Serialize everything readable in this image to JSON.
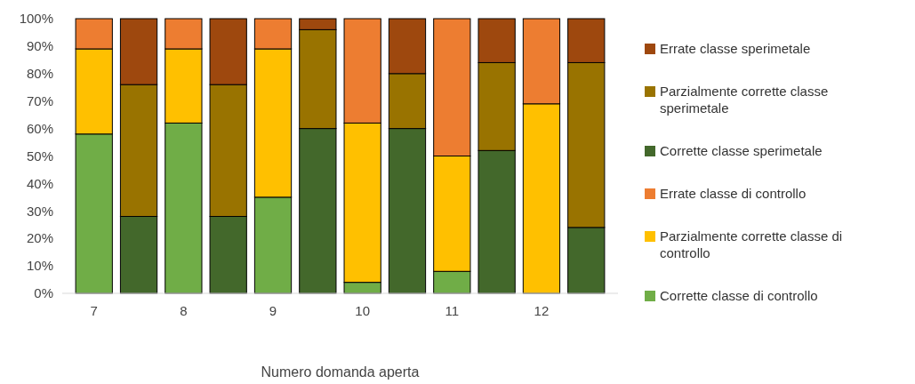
{
  "chart_data": {
    "type": "bar",
    "stacked": true,
    "xlabel": "Numero domanda aperta",
    "categories": [
      "7",
      null,
      "8",
      null,
      "9",
      null,
      "10",
      null,
      "11",
      null,
      "12",
      null
    ],
    "series": [
      {
        "name": "Corrette classe di controllo",
        "color": "#70ad47",
        "values": [
          58,
          null,
          62,
          null,
          35,
          null,
          4,
          null,
          8,
          null,
          0,
          null
        ]
      },
      {
        "name": "Parzialmente corrette classe di controllo",
        "color": "#ffc000",
        "values": [
          31,
          null,
          27,
          null,
          54,
          null,
          58,
          null,
          42,
          null,
          69,
          null
        ]
      },
      {
        "name": "Errate classe di controllo",
        "color": "#ed7d31",
        "values": [
          11,
          null,
          11,
          null,
          11,
          null,
          38,
          null,
          50,
          null,
          31,
          null
        ]
      },
      {
        "name": "Corrette classe sperimetale",
        "color": "#43682b",
        "values": [
          null,
          28,
          null,
          28,
          null,
          60,
          null,
          60,
          null,
          52,
          null,
          24
        ]
      },
      {
        "name": "Parzialmente corrette classe sperimetale",
        "color": "#997300",
        "values": [
          null,
          48,
          null,
          48,
          null,
          36,
          null,
          20,
          null,
          32,
          null,
          60
        ]
      },
      {
        "name": "Errate classe sperimetale",
        "color": "#9e480e",
        "values": [
          null,
          24,
          null,
          24,
          null,
          4,
          null,
          20,
          null,
          16,
          null,
          16
        ]
      }
    ],
    "ylim": [
      0,
      100
    ],
    "yticks": [
      {
        "value": 0,
        "label": "0%"
      },
      {
        "value": 10,
        "label": "10%"
      },
      {
        "value": 20,
        "label": "20%"
      },
      {
        "value": 30,
        "label": "30%"
      },
      {
        "value": 40,
        "label": "40%"
      },
      {
        "value": 50,
        "label": "50%"
      },
      {
        "value": 60,
        "label": "60%"
      },
      {
        "value": 70,
        "label": "70%"
      },
      {
        "value": 80,
        "label": "80%"
      },
      {
        "value": 90,
        "label": "90%"
      },
      {
        "value": 100,
        "label": "100%"
      }
    ],
    "legend": "right"
  }
}
